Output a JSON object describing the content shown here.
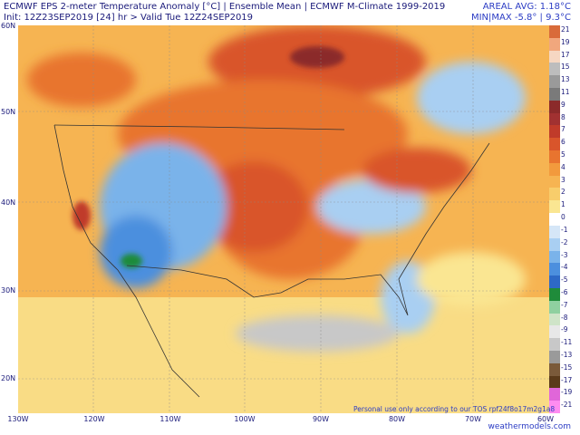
{
  "header": {
    "title": "ECMWF EPS 2-meter Temperature Anomaly [°C] | Ensemble Mean | ECMWF M-Climate 1999-2019",
    "subtitle": "Init: 12Z23SEP2019   [24] hr   > Valid Tue 12Z24SEP2019",
    "areal_avg": "AREAL AVG: 1.18°C",
    "minmax": "MIN|MAX -5.8° | 9.3°C"
  },
  "lat_labels": [
    "60N",
    "50N",
    "40N",
    "30N",
    "20N"
  ],
  "lon_labels": [
    "130W",
    "120W",
    "110W",
    "100W",
    "90W",
    "80W",
    "70W",
    "60W"
  ],
  "legend": {
    "levels": [
      "21",
      "19",
      "17",
      "15",
      "13",
      "11",
      "9",
      "8",
      "7",
      "6",
      "5",
      "4",
      "3",
      "2",
      "1",
      "0",
      "-1",
      "-2",
      "-3",
      "-4",
      "-5",
      "-6",
      "-7",
      "-8",
      "-9",
      "-11",
      "-13",
      "-15",
      "-17",
      "-19",
      "-21"
    ],
    "colors": [
      "#d96b3a",
      "#f1a77d",
      "#f6d7c2",
      "#bdbdbd",
      "#9a9a9a",
      "#7a7a7a",
      "#8b2a2a",
      "#a13131",
      "#c03b2a",
      "#d9552b",
      "#e8742f",
      "#f29a3d",
      "#f6b452",
      "#f8cd6b",
      "#fae692",
      "#ffffff",
      "#d5e6f7",
      "#a9cff2",
      "#7ab3ea",
      "#4c8fde",
      "#2e69c6",
      "#1f8b3a",
      "#8fd0a0",
      "#cfe4c8",
      "#e8e8e8",
      "#c8c8c8",
      "#9a9a9a",
      "#7a5a3a",
      "#5a3a1a",
      "#e066d9",
      "#ff8cf0"
    ]
  },
  "credit": "Personal use only according to our TOS rpf24f8o17m2g1a8",
  "site": "weathermodels.com"
}
